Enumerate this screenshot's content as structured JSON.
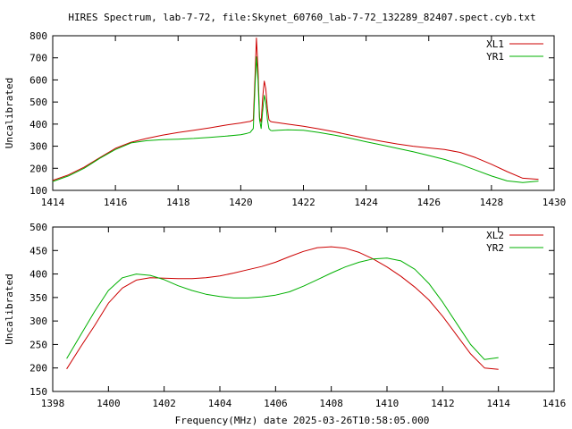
{
  "title": "HIRES Spectrum, lab-7-72, file:Skynet_60760_lab-7-72_132289_82407.spect.cyb.txt",
  "xlabel": "Frequency(MHz) date 2025-03-26T10:58:05.000",
  "colors": {
    "red": "#cc0000",
    "green": "#00b000",
    "axis": "#000000"
  },
  "chart_data": [
    {
      "type": "line",
      "ylabel": "Uncalibrated",
      "xlim": [
        1414,
        1430
      ],
      "ylim": [
        100,
        800
      ],
      "xticks": [
        1414,
        1416,
        1418,
        1420,
        1422,
        1424,
        1426,
        1428,
        1430
      ],
      "yticks": [
        100,
        200,
        300,
        400,
        500,
        600,
        700,
        800
      ],
      "legend_position": "top-right",
      "series": [
        {
          "name": "XL1",
          "color": "#cc0000",
          "x": [
            1414.0,
            1414.5,
            1415.0,
            1415.5,
            1416.0,
            1416.5,
            1417.0,
            1417.5,
            1418.0,
            1418.5,
            1419.0,
            1419.5,
            1420.0,
            1420.2,
            1420.3,
            1420.4,
            1420.45,
            1420.5,
            1420.55,
            1420.6,
            1420.65,
            1420.7,
            1420.75,
            1420.8,
            1420.85,
            1420.9,
            1420.95,
            1421.0,
            1421.2,
            1421.5,
            1422.0,
            1422.5,
            1423.0,
            1423.5,
            1424.0,
            1424.5,
            1425.0,
            1425.5,
            1426.0,
            1426.5,
            1427.0,
            1427.5,
            1428.0,
            1428.5,
            1429.0,
            1429.5
          ],
          "y": [
            145,
            170,
            205,
            248,
            290,
            318,
            335,
            350,
            362,
            372,
            383,
            395,
            405,
            410,
            412,
            420,
            600,
            790,
            650,
            430,
            410,
            520,
            595,
            560,
            470,
            420,
            412,
            410,
            406,
            400,
            390,
            378,
            365,
            350,
            335,
            322,
            310,
            300,
            292,
            285,
            272,
            248,
            218,
            185,
            155,
            150
          ]
        },
        {
          "name": "YR1",
          "color": "#00b000",
          "x": [
            1414.0,
            1414.5,
            1415.0,
            1415.5,
            1416.0,
            1416.5,
            1417.0,
            1417.5,
            1418.0,
            1418.5,
            1419.0,
            1419.5,
            1420.0,
            1420.2,
            1420.3,
            1420.4,
            1420.45,
            1420.5,
            1420.55,
            1420.6,
            1420.65,
            1420.7,
            1420.75,
            1420.8,
            1420.85,
            1420.9,
            1420.95,
            1421.0,
            1421.2,
            1421.5,
            1422.0,
            1422.5,
            1423.0,
            1423.5,
            1424.0,
            1424.5,
            1425.0,
            1425.5,
            1426.0,
            1426.5,
            1427.0,
            1427.5,
            1428.0,
            1428.5,
            1429.0,
            1429.5
          ],
          "y": [
            140,
            165,
            200,
            245,
            285,
            315,
            325,
            330,
            332,
            335,
            340,
            345,
            352,
            358,
            362,
            380,
            560,
            705,
            600,
            420,
            380,
            460,
            530,
            500,
            420,
            380,
            372,
            370,
            372,
            374,
            372,
            362,
            350,
            336,
            320,
            305,
            290,
            275,
            258,
            240,
            218,
            192,
            165,
            143,
            135,
            142
          ]
        }
      ]
    },
    {
      "type": "line",
      "ylabel": "Uncalibrated",
      "xlim": [
        1398,
        1416
      ],
      "ylim": [
        150,
        500
      ],
      "xticks": [
        1398,
        1400,
        1402,
        1404,
        1406,
        1408,
        1410,
        1412,
        1414,
        1416
      ],
      "yticks": [
        150,
        200,
        250,
        300,
        350,
        400,
        450,
        500
      ],
      "legend_position": "top-right",
      "series": [
        {
          "name": "XL2",
          "color": "#cc0000",
          "x": [
            1398.5,
            1399.0,
            1399.5,
            1400.0,
            1400.5,
            1401.0,
            1401.5,
            1402.0,
            1402.5,
            1403.0,
            1403.5,
            1404.0,
            1404.5,
            1405.0,
            1405.5,
            1406.0,
            1406.5,
            1407.0,
            1407.5,
            1408.0,
            1408.5,
            1409.0,
            1409.5,
            1410.0,
            1410.5,
            1411.0,
            1411.5,
            1412.0,
            1412.5,
            1413.0,
            1413.5,
            1414.0
          ],
          "y": [
            198,
            245,
            290,
            338,
            370,
            387,
            392,
            391,
            390,
            390,
            392,
            396,
            402,
            409,
            416,
            425,
            437,
            448,
            456,
            458,
            455,
            446,
            432,
            415,
            395,
            372,
            345,
            310,
            270,
            230,
            200,
            197
          ]
        },
        {
          "name": "YR2",
          "color": "#00b000",
          "x": [
            1398.5,
            1399.0,
            1399.5,
            1400.0,
            1400.5,
            1401.0,
            1401.5,
            1402.0,
            1402.5,
            1403.0,
            1403.5,
            1404.0,
            1404.5,
            1405.0,
            1405.5,
            1406.0,
            1406.5,
            1407.0,
            1407.5,
            1408.0,
            1408.5,
            1409.0,
            1409.5,
            1410.0,
            1410.5,
            1411.0,
            1411.5,
            1412.0,
            1412.5,
            1413.0,
            1413.5,
            1414.0
          ],
          "y": [
            220,
            270,
            320,
            365,
            392,
            400,
            397,
            388,
            375,
            365,
            357,
            352,
            349,
            349,
            351,
            355,
            362,
            374,
            388,
            402,
            415,
            425,
            432,
            434,
            428,
            410,
            380,
            340,
            295,
            250,
            218,
            222
          ]
        }
      ]
    }
  ]
}
